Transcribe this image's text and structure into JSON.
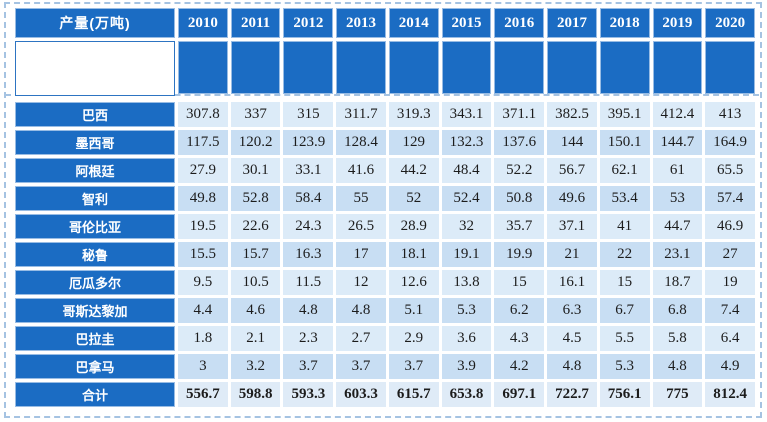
{
  "colors": {
    "header_blue": "#1b6cc3",
    "row_light": "#dcebf8",
    "row_shaded": "#c8def3",
    "total_row_bg": "#dfebf7",
    "dashed_border": "#a5c3e2",
    "white_cell_border": "#2d74c2",
    "header_text": "#ffffff",
    "value_text": "#1c1c1c"
  },
  "chart_data": {
    "type": "table",
    "title": "产量(万吨)",
    "columns": [
      "2010",
      "2011",
      "2012",
      "2013",
      "2014",
      "2015",
      "2016",
      "2017",
      "2018",
      "2019",
      "2020"
    ],
    "rows": [
      {
        "label": "巴西",
        "values": [
          "307.8",
          "337",
          "315",
          "311.7",
          "319.3",
          "343.1",
          "371.1",
          "382.5",
          "395.1",
          "412.4",
          "413"
        ]
      },
      {
        "label": "墨西哥",
        "values": [
          "117.5",
          "120.2",
          "123.9",
          "128.4",
          "129",
          "132.3",
          "137.6",
          "144",
          "150.1",
          "144.7",
          "164.9"
        ]
      },
      {
        "label": "阿根廷",
        "values": [
          "27.9",
          "30.1",
          "33.1",
          "41.6",
          "44.2",
          "48.4",
          "52.2",
          "56.7",
          "62.1",
          "61",
          "65.5"
        ]
      },
      {
        "label": "智利",
        "values": [
          "49.8",
          "52.8",
          "58.4",
          "55",
          "52",
          "52.4",
          "50.8",
          "49.6",
          "53.4",
          "53",
          "57.4"
        ]
      },
      {
        "label": "哥伦比亚",
        "values": [
          "19.5",
          "22.6",
          "24.3",
          "26.5",
          "28.9",
          "32",
          "35.7",
          "37.1",
          "41",
          "44.7",
          "46.9"
        ]
      },
      {
        "label": "秘鲁",
        "values": [
          "15.5",
          "15.7",
          "16.3",
          "17",
          "18.1",
          "19.1",
          "19.9",
          "21",
          "22",
          "23.1",
          "27"
        ]
      },
      {
        "label": "厄瓜多尔",
        "values": [
          "9.5",
          "10.5",
          "11.5",
          "12",
          "12.6",
          "13.8",
          "15",
          "16.1",
          "15",
          "18.7",
          "19"
        ]
      },
      {
        "label": "哥斯达黎加",
        "values": [
          "4.4",
          "4.6",
          "4.8",
          "4.8",
          "5.1",
          "5.3",
          "6.2",
          "6.3",
          "6.7",
          "6.8",
          "7.4"
        ]
      },
      {
        "label": "巴拉圭",
        "values": [
          "1.8",
          "2.1",
          "2.3",
          "2.7",
          "2.9",
          "3.6",
          "4.3",
          "4.5",
          "5.5",
          "5.8",
          "6.4"
        ]
      },
      {
        "label": "巴拿马",
        "values": [
          "3",
          "3.2",
          "3.7",
          "3.7",
          "3.7",
          "3.9",
          "4.2",
          "4.8",
          "5.3",
          "4.8",
          "4.9"
        ]
      }
    ],
    "total_row": {
      "label": "合计",
      "values": [
        "556.7",
        "598.8",
        "593.3",
        "603.3",
        "615.7",
        "653.8",
        "697.1",
        "722.7",
        "756.1",
        "775",
        "812.4"
      ]
    }
  }
}
